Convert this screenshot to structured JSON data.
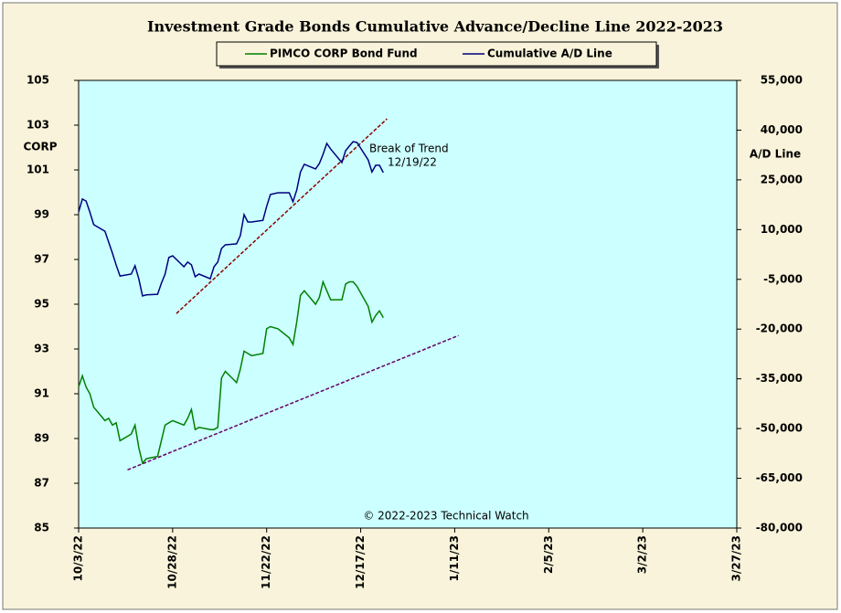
{
  "chart_data": {
    "type": "line",
    "title": "Investment Grade Bonds Cumulative Advance/Decline Line 2022-2023",
    "y_label": "CORP",
    "y2_label": "A/D Line",
    "copyright": "© 2022-2023 Technical Watch",
    "annotations": [
      "Break of Trend",
      "12/19/22"
    ],
    "annotation_colors": [
      "#e0309a",
      "#808080"
    ],
    "background": "#ccffff",
    "x": [
      "2022-10-03",
      "2022-10-04",
      "2022-10-05",
      "2022-10-06",
      "2022-10-07",
      "2022-10-10",
      "2022-10-11",
      "2022-10-12",
      "2022-10-13",
      "2022-10-14",
      "2022-10-17",
      "2022-10-18",
      "2022-10-19",
      "2022-10-20",
      "2022-10-21",
      "2022-10-24",
      "2022-10-25",
      "2022-10-26",
      "2022-10-27",
      "2022-10-28",
      "2022-10-31",
      "2022-11-01",
      "2022-11-02",
      "2022-11-03",
      "2022-11-04",
      "2022-11-07",
      "2022-11-08",
      "2022-11-09",
      "2022-11-10",
      "2022-11-11",
      "2022-11-14",
      "2022-11-15",
      "2022-11-16",
      "2022-11-17",
      "2022-11-18",
      "2022-11-21",
      "2022-11-22",
      "2022-11-23",
      "2022-11-25",
      "2022-11-28",
      "2022-11-29",
      "2022-11-30",
      "2022-12-01",
      "2022-12-02",
      "2022-12-05",
      "2022-12-06",
      "2022-12-07",
      "2022-12-08",
      "2022-12-09",
      "2022-12-12",
      "2022-12-13",
      "2022-12-14",
      "2022-12-15",
      "2022-12-16",
      "2022-12-19",
      "2022-12-20",
      "2022-12-21",
      "2022-12-22",
      "2022-12-23"
    ],
    "series": [
      {
        "name": "PIMCO CORP Bond Fund",
        "color": "#008000",
        "axis": "y",
        "values": [
          91.3,
          91.8,
          91.3,
          91.0,
          90.4,
          89.8,
          89.9,
          89.6,
          89.7,
          88.9,
          89.2,
          89.6,
          88.6,
          87.9,
          88.1,
          88.2,
          88.9,
          89.6,
          89.7,
          89.8,
          89.6,
          89.9,
          90.3,
          89.4,
          89.5,
          89.4,
          89.4,
          89.5,
          91.7,
          92.0,
          91.5,
          92.1,
          92.9,
          92.8,
          92.7,
          92.8,
          93.9,
          94.0,
          93.9,
          93.5,
          93.2,
          94.2,
          95.4,
          95.6,
          95.0,
          95.3,
          96.0,
          95.6,
          95.2,
          95.2,
          95.9,
          96.0,
          96.0,
          95.8,
          94.9,
          94.2,
          94.5,
          94.7,
          94.4
        ]
      },
      {
        "name": "Cumulative A/D Line",
        "color": "#000080",
        "axis": "y2",
        "values": [
          15300,
          19200,
          18600,
          15300,
          11500,
          9500,
          6200,
          2900,
          -700,
          -4000,
          -3400,
          -900,
          -4800,
          -10000,
          -9700,
          -9500,
          -6200,
          -3400,
          1600,
          2100,
          -1200,
          200,
          -600,
          -4200,
          -3400,
          -4800,
          -1200,
          200,
          4300,
          5400,
          5700,
          8200,
          14500,
          12300,
          12300,
          12800,
          17000,
          20600,
          21100,
          21100,
          18400,
          21900,
          27400,
          29700,
          28300,
          29900,
          32700,
          36000,
          34300,
          30200,
          33800,
          35200,
          36500,
          36300,
          31000,
          27400,
          29400,
          29400,
          27200
        ]
      }
    ],
    "trend_lines": [
      {
        "x": [
          "2022-10-29",
          "2022-12-24"
        ],
        "values": [
          -15300,
          43400
        ],
        "axis": "y2",
        "color": "#8b0000"
      },
      {
        "x": [
          "2022-10-16",
          "2023-01-12"
        ],
        "values": [
          87.6,
          93.6
        ],
        "axis": "y",
        "color": "#660066"
      }
    ],
    "xlim": [
      "2022-10-03",
      "2023-03-27"
    ],
    "xticks": [
      {
        "value": "2022-10-03",
        "label": "10/3/22"
      },
      {
        "value": "2022-10-28",
        "label": "10/28/22"
      },
      {
        "value": "2022-11-22",
        "label": "11/22/22"
      },
      {
        "value": "2022-12-17",
        "label": "12/17/22"
      },
      {
        "value": "2023-01-11",
        "label": "1/11/23"
      },
      {
        "value": "2023-02-05",
        "label": "2/5/23"
      },
      {
        "value": "2023-03-02",
        "label": "3/2/23"
      },
      {
        "value": "2023-03-27",
        "label": "3/27/23"
      }
    ],
    "ylim": [
      85,
      105
    ],
    "yticks": [
      85,
      87,
      89,
      91,
      93,
      95,
      97,
      99,
      101,
      103,
      105
    ],
    "y2lim": [
      -80000,
      55000
    ],
    "y2ticks": [
      {
        "value": -80000,
        "label": "-80,000"
      },
      {
        "value": -65000,
        "label": "-65,000"
      },
      {
        "value": -50000,
        "label": "-50,000"
      },
      {
        "value": -35000,
        "label": "-35,000"
      },
      {
        "value": -20000,
        "label": "-20,000"
      },
      {
        "value": -5000,
        "label": "-5,000"
      },
      {
        "value": 10000,
        "label": "10,000"
      },
      {
        "value": 25000,
        "label": "25,000"
      },
      {
        "value": 40000,
        "label": "40,000"
      },
      {
        "value": 55000,
        "label": "55,000"
      }
    ]
  }
}
